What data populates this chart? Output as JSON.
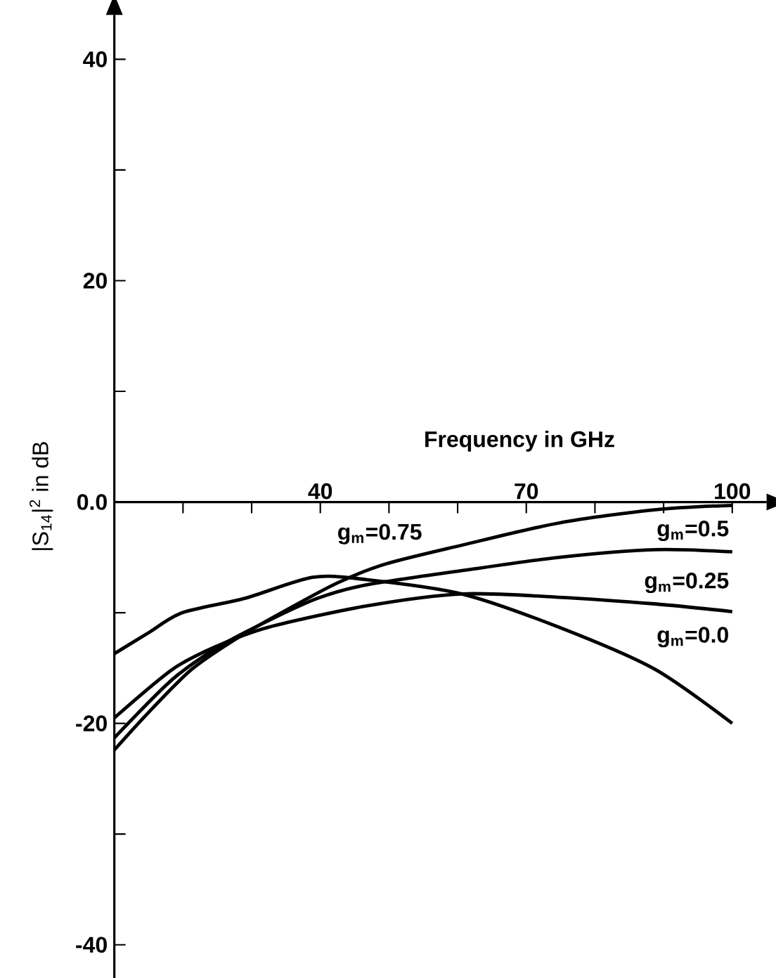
{
  "chart_data": {
    "type": "line",
    "xlabel": "Frequency in GHz",
    "ylabel": "|S$_{14}$|$^{2}$ in dB",
    "xlim": [
      10,
      105
    ],
    "ylim": [
      -43,
      44
    ],
    "xticks": [
      {
        "value": 20,
        "label": null
      },
      {
        "value": 30,
        "label": null
      },
      40,
      {
        "value": 50,
        "label": null
      },
      {
        "value": 60,
        "label": null
      },
      70,
      {
        "value": 80,
        "label": null
      },
      {
        "value": 90,
        "label": null
      },
      100
    ],
    "yticks": [
      -40,
      {
        "value": -30,
        "label": null
      },
      -20,
      {
        "value": -10,
        "label": null
      },
      {
        "value": 0,
        "label": "0.0"
      },
      {
        "value": 10,
        "label": null
      },
      20,
      {
        "value": 30,
        "label": null
      },
      40
    ],
    "grid": false,
    "legend": false,
    "marker": "none",
    "line_style": "solid",
    "series": [
      {
        "name": "g$_{m}$=0.75",
        "color": "#000000",
        "x": [
          10,
          15,
          21.3,
          28.4,
          35.5,
          42.5,
          49.5,
          60.6,
          74.7,
          88.7,
          100
        ],
        "values": [
          -22.4,
          -19,
          -15.1,
          -12.1,
          -9.6,
          -7.3,
          -5.6,
          -3.9,
          -1.9,
          -0.7,
          -0.3
        ]
      },
      {
        "name": "g$_{m}$=0.5",
        "color": "#000000",
        "x": [
          10,
          18.5,
          25.4,
          32.5,
          39.6,
          46.6,
          60.6,
          74.7,
          88.7,
          100
        ],
        "values": [
          -21.3,
          -16,
          -13.0,
          -10.7,
          -8.7,
          -7.5,
          -6.2,
          -5.0,
          -4.3,
          -4.5
        ]
      },
      {
        "name": "g$_{m}$=0.25",
        "color": "#000000",
        "x": [
          10,
          18.5,
          25,
          32.5,
          46.6,
          60.6,
          74.7,
          88.7,
          100
        ],
        "values": [
          -19.5,
          -15.1,
          -13.0,
          -11.3,
          -9.4,
          -8.3,
          -8.6,
          -9.2,
          -9.9
        ]
      },
      {
        "name": "g$_{m}$=0.0",
        "color": "#000000",
        "x": [
          10,
          15,
          19.9,
          29,
          38.9,
          46.6,
          60.6,
          74.7,
          88.7,
          100
        ],
        "values": [
          -13.7,
          -11.8,
          -10.0,
          -8.7,
          -6.8,
          -7.0,
          -8.3,
          -11.3,
          -15.1,
          -20
        ]
      }
    ]
  }
}
